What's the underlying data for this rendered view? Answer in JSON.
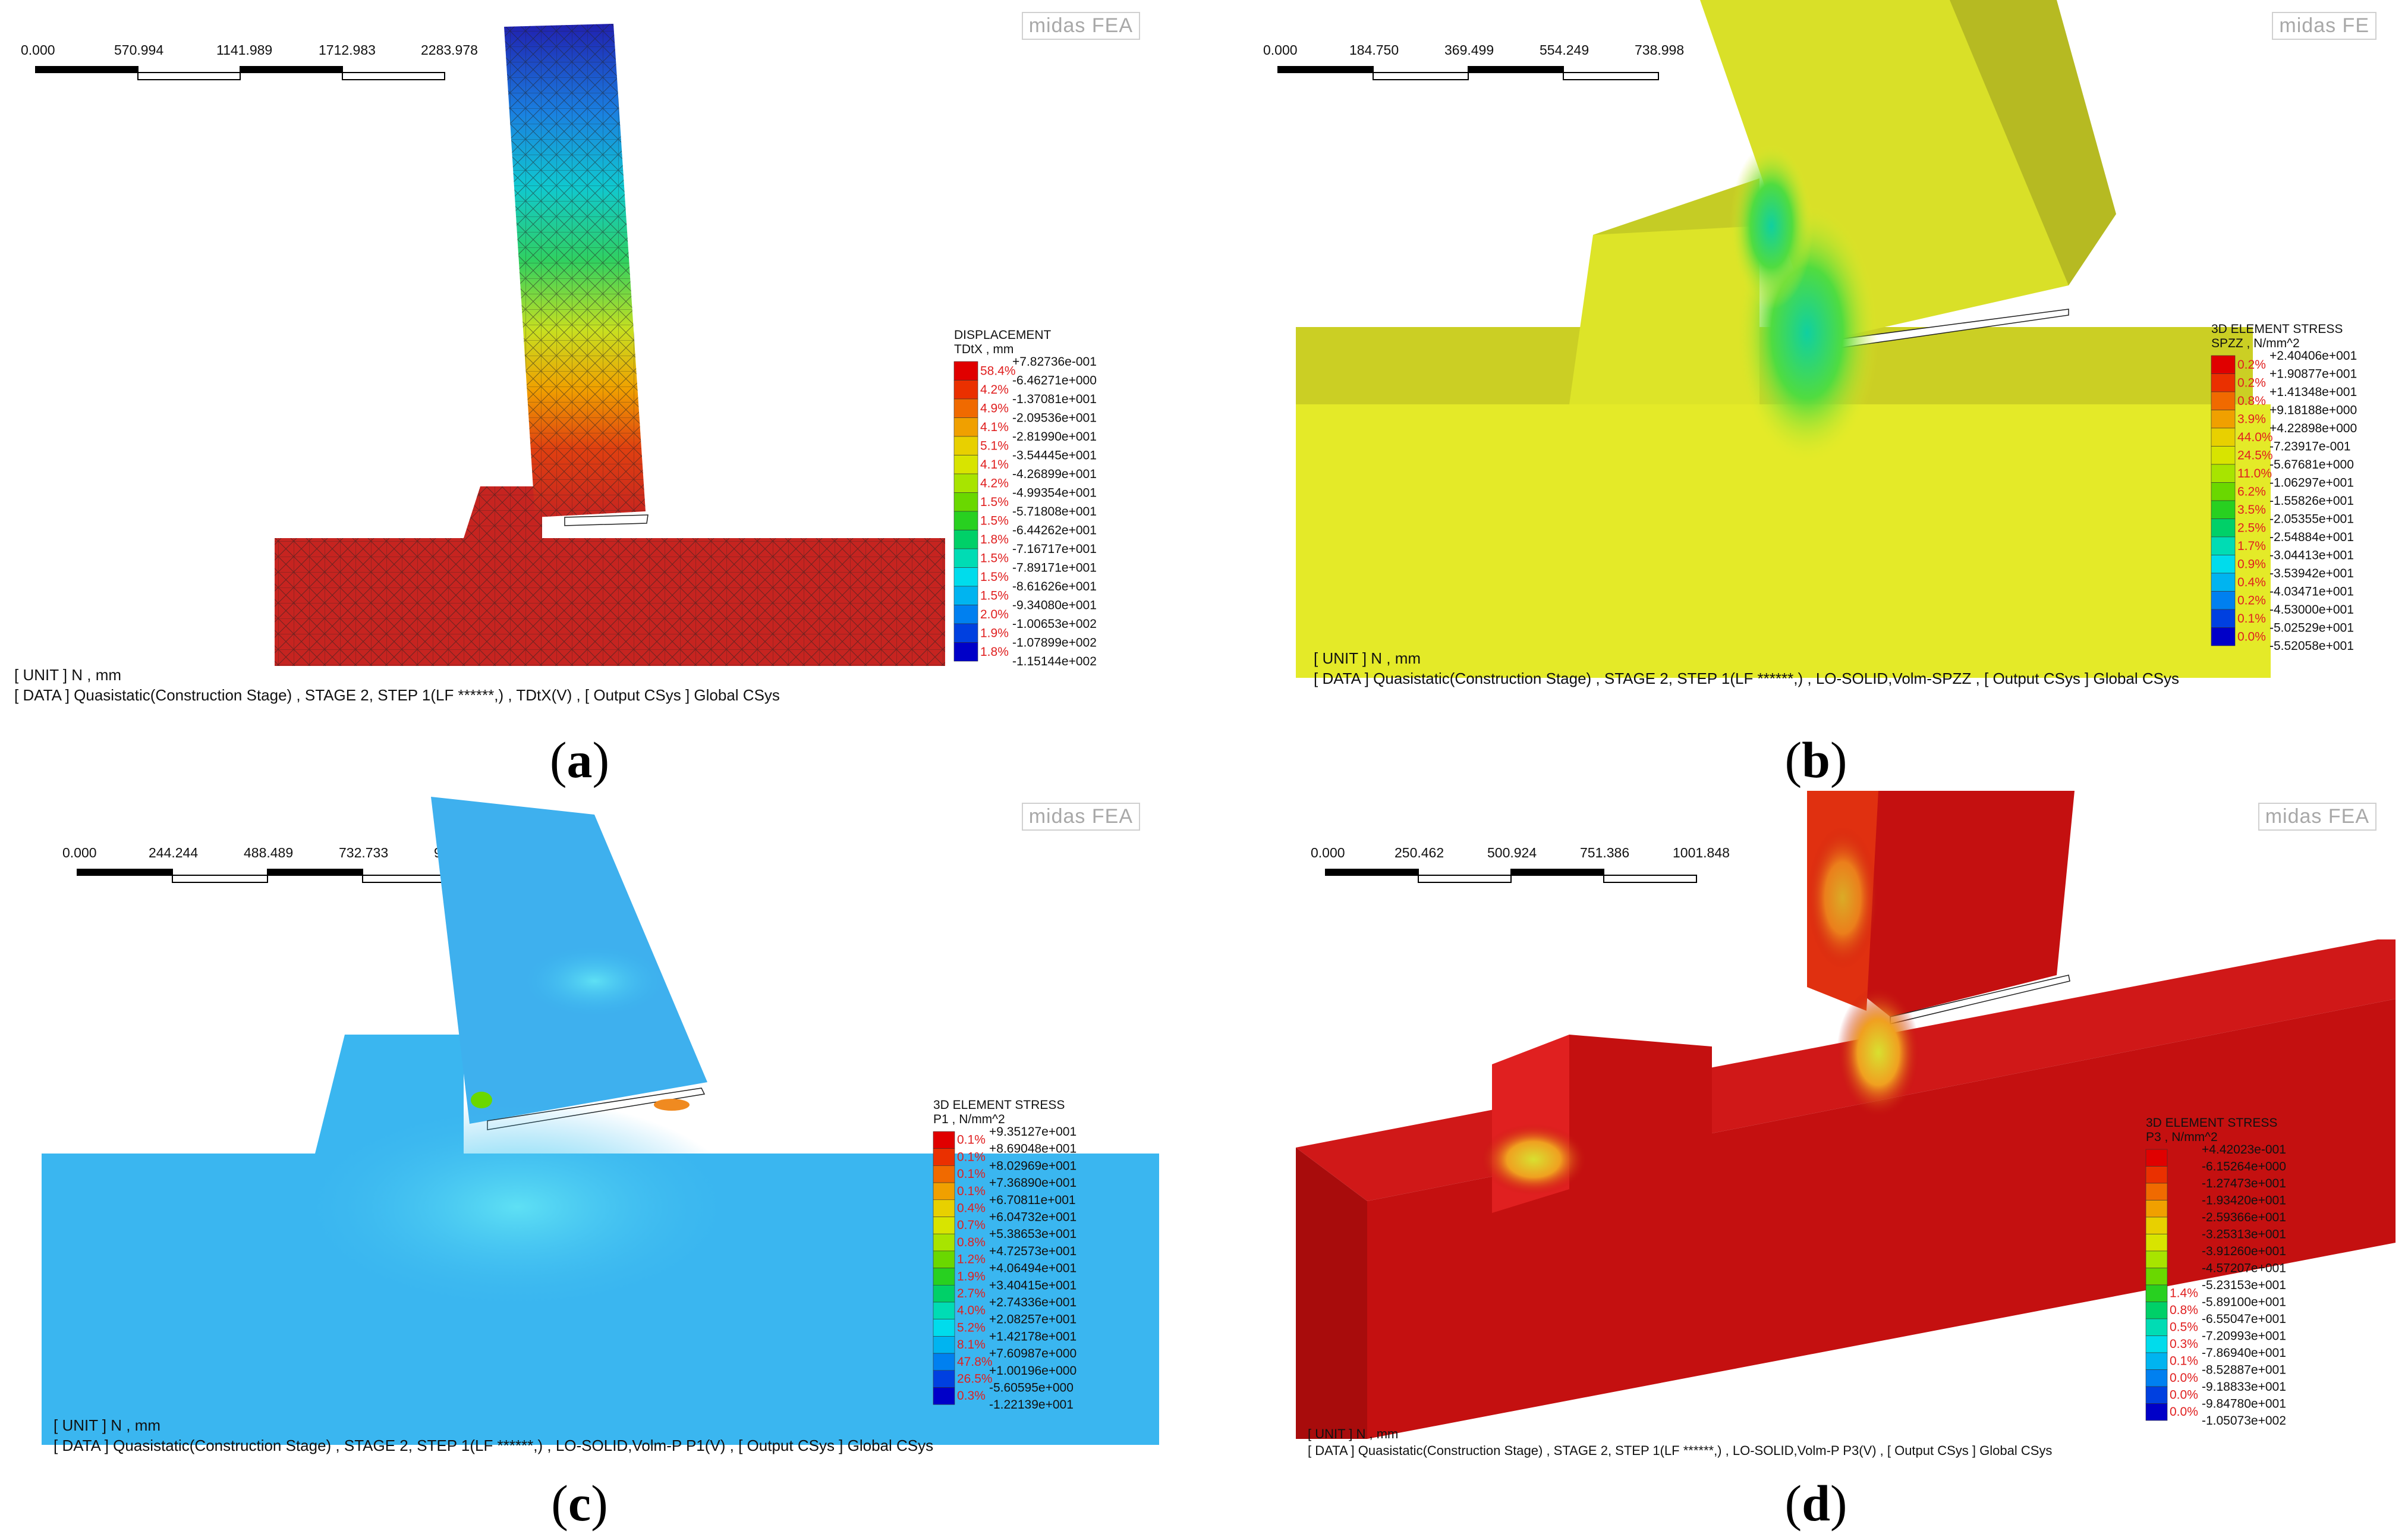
{
  "panels": [
    {
      "caption": "a",
      "logo": "midas FEA",
      "scale_ticks": [
        "0.000",
        "570.994",
        "1141.989",
        "1712.983",
        "2283.978"
      ],
      "legend_title": "DISPLACEMENT",
      "legend_subtitle": "TDtX , mm",
      "legend_percents": [
        "58.4%",
        "4.2%",
        "4.9%",
        "4.1%",
        "5.1%",
        "4.1%",
        "4.2%",
        "1.5%",
        "1.5%",
        "1.8%",
        "1.5%",
        "1.5%",
        "1.5%",
        "2.0%",
        "1.9%",
        "1.8%"
      ],
      "legend_values": [
        "+7.82736e-001",
        "-6.46271e+000",
        "-1.37081e+001",
        "-2.09536e+001",
        "-2.81990e+001",
        "-3.54445e+001",
        "-4.26899e+001",
        "-4.99354e+001",
        "-5.71808e+001",
        "-6.44262e+001",
        "-7.16717e+001",
        "-7.89171e+001",
        "-8.61626e+001",
        "-9.34080e+001",
        "-1.00653e+002",
        "-1.07899e+002",
        "-1.15144e+002"
      ],
      "footer_unit": "[ UNIT ]  N , mm",
      "footer_data": "[ DATA ]  Quasistatic(Construction Stage) ,  STAGE   2, STEP  1(LF ******,) ,   TDtX(V) ,  [ Output CSys ]  Global CSys"
    },
    {
      "caption": "b",
      "logo": "midas FE",
      "scale_ticks": [
        "0.000",
        "184.750",
        "369.499",
        "554.249",
        "738.998"
      ],
      "legend_title": "3D ELEMENT STRESS",
      "legend_subtitle": "SPZZ , N/mm^2",
      "legend_percents": [
        "0.2%",
        "0.2%",
        "0.8%",
        "3.9%",
        "44.0%",
        "24.5%",
        "11.0%",
        "6.2%",
        "3.5%",
        "2.5%",
        "1.7%",
        "0.9%",
        "0.4%",
        "0.2%",
        "0.1%",
        "0.0%"
      ],
      "legend_values": [
        "+2.40406e+001",
        "+1.90877e+001",
        "+1.41348e+001",
        "+9.18188e+000",
        "+4.22898e+000",
        "-7.23917e-001",
        "-5.67681e+000",
        "-1.06297e+001",
        "-1.55826e+001",
        "-2.05355e+001",
        "-2.54884e+001",
        "-3.04413e+001",
        "-3.53942e+001",
        "-4.03471e+001",
        "-4.53000e+001",
        "-5.02529e+001",
        "-5.52058e+001"
      ],
      "footer_unit": "[ UNIT ]  N , mm",
      "footer_data": "[ DATA ]  Quasistatic(Construction Stage) ,  STAGE   2, STEP  1(LF ******,) ,  LO-SOLID,Volm-SPZZ ,  [ Output CSys ]  Global CSys"
    },
    {
      "caption": "c",
      "logo": "midas FEA",
      "scale_ticks": [
        "0.000",
        "244.244",
        "488.489",
        "732.733",
        "976.977"
      ],
      "legend_title": "3D ELEMENT STRESS",
      "legend_subtitle": "P1 , N/mm^2",
      "legend_percents": [
        "0.1%",
        "0.1%",
        "0.1%",
        "0.1%",
        "0.4%",
        "0.7%",
        "0.8%",
        "1.2%",
        "1.9%",
        "2.7%",
        "4.0%",
        "5.2%",
        "8.1%",
        "47.8%",
        "26.5%",
        "0.3%"
      ],
      "legend_values": [
        "+9.35127e+001",
        "+8.69048e+001",
        "+8.02969e+001",
        "+7.36890e+001",
        "+6.70811e+001",
        "+6.04732e+001",
        "+5.38653e+001",
        "+4.72573e+001",
        "+4.06494e+001",
        "+3.40415e+001",
        "+2.74336e+001",
        "+2.08257e+001",
        "+1.42178e+001",
        "+7.60987e+000",
        "+1.00196e+000",
        "-5.60595e+000",
        "-1.22139e+001"
      ],
      "footer_unit": "[ UNIT ]  N , mm",
      "footer_data": "[ DATA ]  Quasistatic(Construction Stage) ,  STAGE   2, STEP  1(LF ******,) ,   LO-SOLID,Volm-P P1(V) ,  [ Output CSys ]  Global CSys"
    },
    {
      "caption": "d",
      "logo": "midas FEA",
      "scale_ticks": [
        "0.000",
        "250.462",
        "500.924",
        "751.386",
        "1001.848"
      ],
      "legend_title": "3D ELEMENT STRESS",
      "legend_subtitle": "P3 , N/mm^2",
      "legend_percents": [
        "",
        "",
        "",
        "",
        "",
        "",
        "",
        "",
        "1.4%",
        "0.8%",
        "0.5%",
        "0.3%",
        "0.1%",
        "0.0%",
        "0.0%",
        "0.0%"
      ],
      "legend_values": [
        "+4.42023e-001",
        "-6.15264e+000",
        "-1.27473e+001",
        "-1.93420e+001",
        "-2.59366e+001",
        "-3.25313e+001",
        "-3.91260e+001",
        "-4.57207e+001",
        "-5.23153e+001",
        "-5.89100e+001",
        "-6.55047e+001",
        "-7.20993e+001",
        "-7.86940e+001",
        "-8.52887e+001",
        "-9.18833e+001",
        "-9.84780e+001",
        "-1.05073e+002"
      ],
      "footer_unit": "[ UNIT ]  N , mm",
      "footer_data": "[ DATA ]  Quasistatic(Construction Stage) ,  STAGE   2, STEP  1(LF ******,) ,  LO-SOLID,Volm-P P3(V) ,  [ Output CSys ]  Global CSys"
    }
  ],
  "colors": {
    "scale_16": [
      "#e00000",
      "#ea3000",
      "#f06a00",
      "#f0a000",
      "#e8d000",
      "#d8e400",
      "#a8e400",
      "#6ad800",
      "#28d020",
      "#00d068",
      "#00dcb4",
      "#00dcec",
      "#00b4f0",
      "#0080f0",
      "#0040e0",
      "#0000c8"
    ],
    "panel_a_base": "#c62420",
    "panel_a_mesh": "#5a1010",
    "panel_b_field": "#e4ea28",
    "panel_b_hot": "#2ad860",
    "panel_c_field": "#3ab6f0",
    "panel_c_light": "#56d4f6",
    "panel_d_field": "#c41010",
    "panel_d_hot": "#f0c020"
  }
}
